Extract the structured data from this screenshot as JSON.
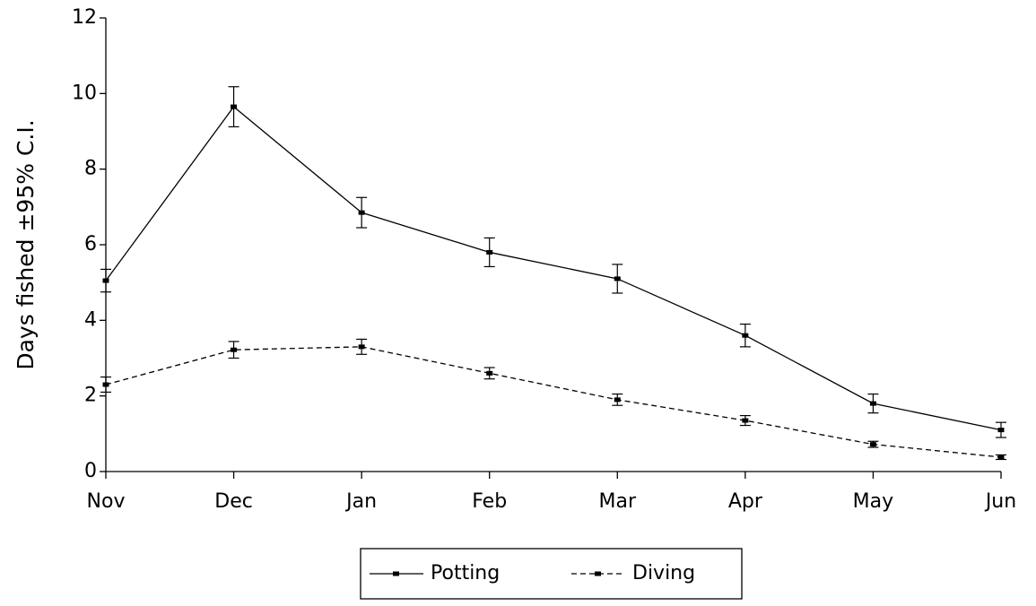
{
  "chart_data": {
    "type": "line",
    "y_label": "Days fished ±95% C.I.",
    "categories": [
      "Nov",
      "Dec",
      "Jan",
      "Feb",
      "Mar",
      "Apr",
      "May",
      "Jun"
    ],
    "series": [
      {
        "name": "Potting",
        "color": "#000000",
        "line_style": "solid",
        "values": [
          5.05,
          9.65,
          6.85,
          5.8,
          5.1,
          3.6,
          1.8,
          1.1
        ],
        "errors": [
          0.3,
          0.53,
          0.4,
          0.38,
          0.38,
          0.3,
          0.25,
          0.2
        ]
      },
      {
        "name": "Diving",
        "color": "#000000",
        "line_style": "dashed",
        "values": [
          2.3,
          3.22,
          3.3,
          2.6,
          1.9,
          1.35,
          0.72,
          0.38
        ],
        "errors": [
          0.2,
          0.22,
          0.2,
          0.15,
          0.15,
          0.13,
          0.08,
          0.06
        ]
      }
    ],
    "ylim": [
      0,
      12
    ],
    "yticks": [
      0,
      2,
      4,
      6,
      8,
      10,
      12
    ],
    "grid": false,
    "legend": "bottom"
  }
}
